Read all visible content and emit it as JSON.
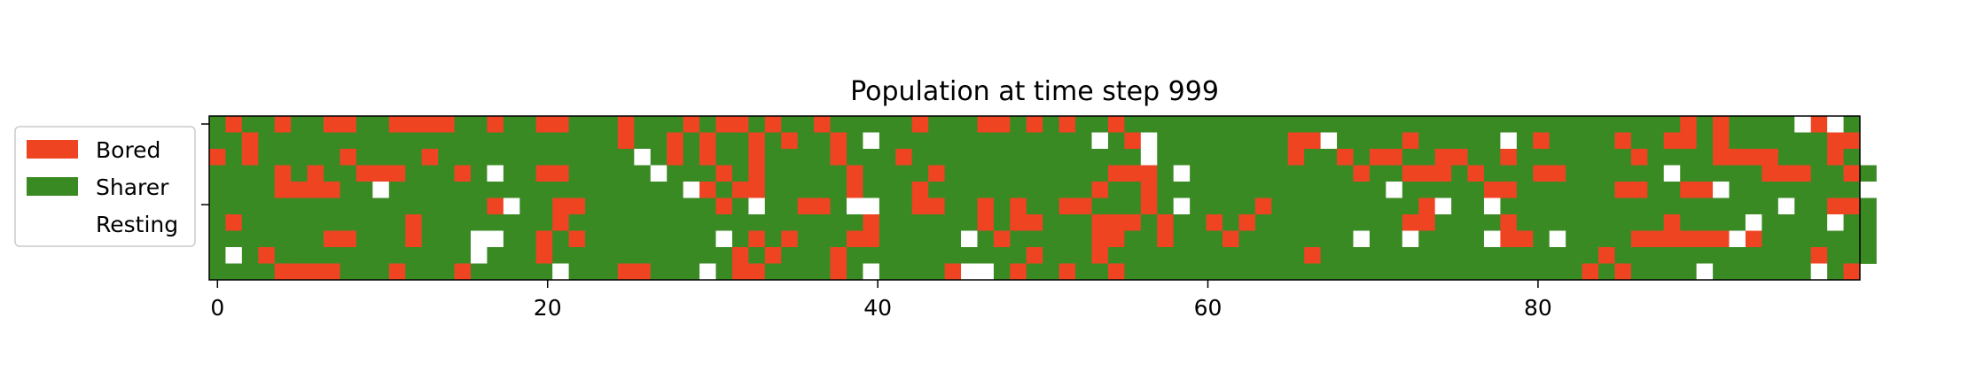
{
  "chart_data": {
    "type": "heatmap",
    "title": "Population at time step 999",
    "xlabel": "",
    "ylabel": "",
    "x_ticks": [
      0,
      20,
      40,
      60,
      80
    ],
    "xlim": [
      -0.5,
      99.5
    ],
    "ylim": [
      -0.5,
      9.5
    ],
    "grid": false,
    "legend_position": "left",
    "states": [
      {
        "code": "B",
        "name": "Bored",
        "color": "#EE4422"
      },
      {
        "code": "S",
        "name": "Sharer",
        "color": "#3A8A24"
      },
      {
        "code": "R",
        "name": "Resting",
        "color": "#FFFFFF"
      }
    ],
    "rows": [
      "SBSSBSSBBSSBBBBSSBSSBBSSSBSSSBSBBSBSSBSSSSSBSSSBBSBSBSSBSSSSSSSSSSSSSSSSSSSSSSSSSSSSSSSSSSBSBSSSSRBRS",
      "SSBSSSSSSSSSSSSSSSSSSSSSSBSSBSBSSBSBSSBSRSSSSSSSSSSSSSRSBRSSSSSSSSBBRSSSSBSSSSSRSBSSSSBSSBBSBSSSSSSBB",
      "BSBSSSSSBSSSSBSSSSSSSSSSSSRSBSBSSBSSSSBSSSBSSSSSSSSSSSSSSRSSSSSSSSBSSBSBBSSBBSSBSSSSSSSBSSSSBBBBSSSBS",
      "SSSSBSBSSBBBSSSBSRSSBBSSSSSRSSSBSBSSSSSBSSSSBSSSSSSSSSSBBBSRSSSSSSSSSSBSSBBBSBSSSBBSSSSSSRSSSSSBBBSSBS",
      "SSSSBBBBSSRSSSSSSSSSSSSSSSSSSRBSBBSSSSSBSSSBSSSSSSSSSSBSSBSSSSSSSSSSSSSSRSSSSSBBSSSSSSBBSSBBRSSSSSSSSR",
      "SSSSSSSSSSSSSSSSSBRSSBBSSSSSSSSBSRSSBBSRRSSBBSSBSBSSBBSSSBSRSSSSBSSSSSSSSSBRSSRSSSSSSSSSSSSSSSSSRSSBBS",
      "SBSSSSSSSSSSBSSSSSSSSBSSSSSSSSSSSSSSSSSSBSSSSSSBSBBSSSBBBSBSSBSBSSSSSSSSSBBSSSSBSSSSSSSSSBSSSSRSSSSRSS",
      "SSSSSSSBBSSSBSSSRRSSBSBSSSSSSSSRSBSBSSSBBSSSSSRSBSSSSSBBSSBSSSBSSSSSSSRSSRSSSSRBBSRSSSSBBBBBBRBSSSSSSS",
      "SRSBSSSSSSSSSSSSRSSSBSSSSSSSSSSSBSBSSSBSSSSSSSSSSSBSSSBSSSSSSSSSSSSBSSSSSSSSSSSSSSSSSBSSSSSSSSSSSSBSSS",
      "SSSSBBBBSSSBSSSBSSSSSRSSSBBSSSRSBBSSSSBSRSSSSBRRSBSSBSSBSSSSSSSSSSSSSSSSSSSSSSSSSSSSBSBSSSSRSSSSSSRSB"
    ]
  }
}
